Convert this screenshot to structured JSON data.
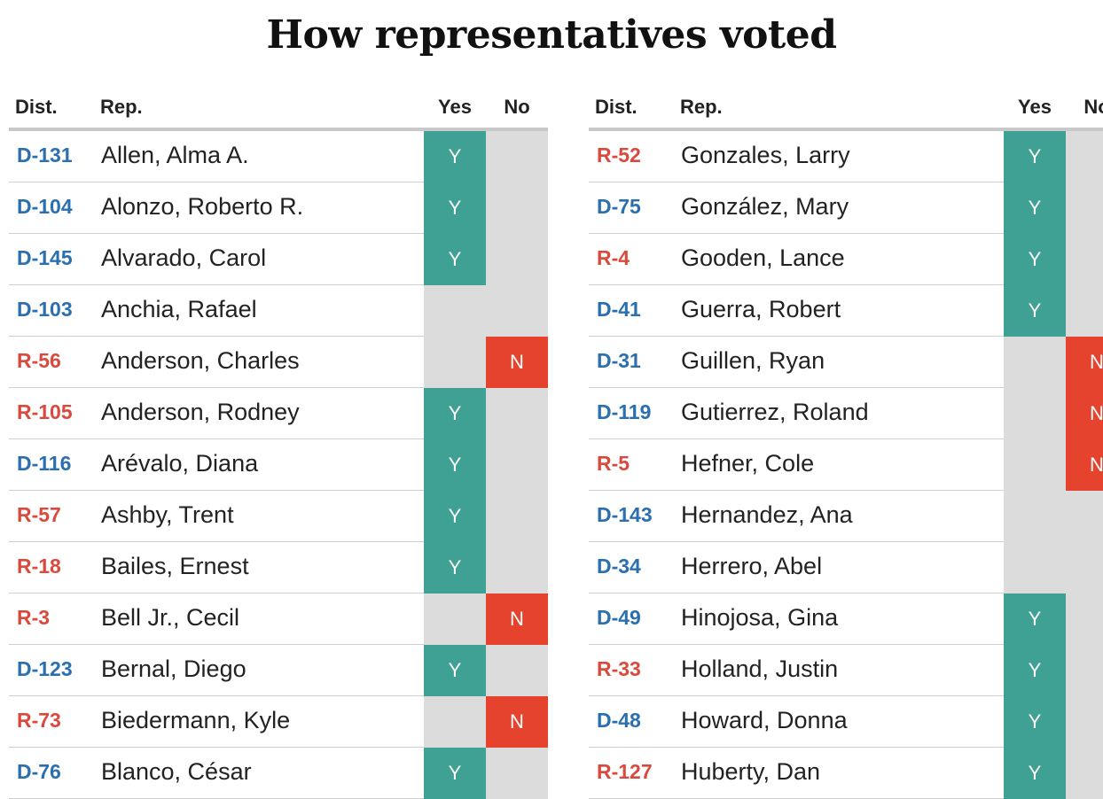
{
  "title": "How representatives voted",
  "headers": {
    "dist": "Dist.",
    "rep": "Rep.",
    "yes": "Yes",
    "no": "No"
  },
  "colors": {
    "dem": "#2a6fb0",
    "rep": "#d94a3d",
    "yes": "#3fa193",
    "no": "#e6432e",
    "empty": "#dcdcdc"
  },
  "left": [
    {
      "dist": "D-131",
      "name": "Allen, Alma A.",
      "vote": "Y"
    },
    {
      "dist": "D-104",
      "name": "Alonzo, Roberto R.",
      "vote": "Y"
    },
    {
      "dist": "D-145",
      "name": "Alvarado, Carol",
      "vote": "Y"
    },
    {
      "dist": "D-103",
      "name": "Anchia, Rafael",
      "vote": ""
    },
    {
      "dist": "R-56",
      "name": "Anderson, Charles",
      "vote": "N"
    },
    {
      "dist": "R-105",
      "name": "Anderson, Rodney",
      "vote": "Y"
    },
    {
      "dist": "D-116",
      "name": "Arévalo, Diana",
      "vote": "Y"
    },
    {
      "dist": "R-57",
      "name": "Ashby, Trent",
      "vote": "Y"
    },
    {
      "dist": "R-18",
      "name": "Bailes, Ernest",
      "vote": "Y"
    },
    {
      "dist": "R-3",
      "name": "Bell Jr., Cecil",
      "vote": "N"
    },
    {
      "dist": "D-123",
      "name": "Bernal, Diego",
      "vote": "Y"
    },
    {
      "dist": "R-73",
      "name": "Biedermann, Kyle",
      "vote": "N"
    },
    {
      "dist": "D-76",
      "name": "Blanco, César",
      "vote": "Y"
    }
  ],
  "right": [
    {
      "dist": "R-52",
      "name": "Gonzales, Larry",
      "vote": "Y"
    },
    {
      "dist": "D-75",
      "name": "González, Mary",
      "vote": "Y"
    },
    {
      "dist": "R-4",
      "name": "Gooden, Lance",
      "vote": "Y"
    },
    {
      "dist": "D-41",
      "name": "Guerra, Robert",
      "vote": "Y"
    },
    {
      "dist": "D-31",
      "name": "Guillen, Ryan",
      "vote": "N"
    },
    {
      "dist": "D-119",
      "name": "Gutierrez, Roland",
      "vote": "N"
    },
    {
      "dist": "R-5",
      "name": "Hefner, Cole",
      "vote": "N"
    },
    {
      "dist": "D-143",
      "name": "Hernandez, Ana",
      "vote": ""
    },
    {
      "dist": "D-34",
      "name": "Herrero, Abel",
      "vote": ""
    },
    {
      "dist": "D-49",
      "name": "Hinojosa, Gina",
      "vote": "Y"
    },
    {
      "dist": "R-33",
      "name": "Holland, Justin",
      "vote": "Y"
    },
    {
      "dist": "D-48",
      "name": "Howard, Donna",
      "vote": "Y"
    },
    {
      "dist": "R-127",
      "name": "Huberty, Dan",
      "vote": "Y"
    }
  ]
}
